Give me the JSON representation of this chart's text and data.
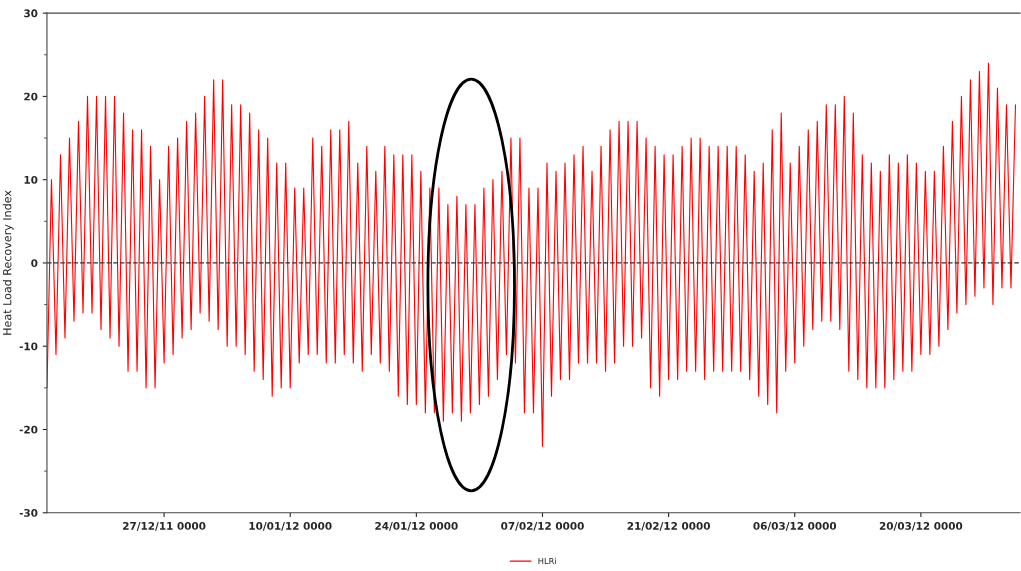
{
  "chart_data": {
    "type": "line",
    "ylabel": "Heat Load Recovery Index",
    "xlim": [
      "2011-12-14",
      "2012-03-31"
    ],
    "xticks": [
      {
        "value": "2011-12-27",
        "label": "27/12/11 0000"
      },
      {
        "value": "2012-01-10",
        "label": "10/01/12 0000"
      },
      {
        "value": "2012-01-24",
        "label": "24/01/12 0000"
      },
      {
        "value": "2012-02-07",
        "label": "07/02/12 0000"
      },
      {
        "value": "2012-02-21",
        "label": "21/02/12 0000"
      },
      {
        "value": "2012-03-06",
        "label": "06/03/12 0000"
      },
      {
        "value": "2012-03-20",
        "label": "20/03/12 0000"
      }
    ],
    "ylim": [
      -30,
      30
    ],
    "yticks": [
      -30,
      -20,
      -10,
      0,
      10,
      20,
      30
    ],
    "grid": false,
    "legend": "bottom",
    "marker": "none",
    "line_style": "solid",
    "ref_lines": [
      {
        "axis": "y",
        "value": 0,
        "color": "#333333",
        "line_style": "dashed"
      }
    ],
    "series": [
      {
        "name": "HLRi",
        "color": "#ff0000",
        "x": [
          "2011-12-14T00:00",
          "2011-12-14T12:00",
          "2011-12-15T00:00",
          "2011-12-15T12:00",
          "2011-12-16T00:00",
          "2011-12-16T12:00",
          "2011-12-17T00:00",
          "2011-12-17T12:00",
          "2011-12-18T00:00",
          "2011-12-18T12:00",
          "2011-12-19T00:00",
          "2011-12-19T12:00",
          "2011-12-20T00:00",
          "2011-12-20T12:00",
          "2011-12-21T00:00",
          "2011-12-21T12:00",
          "2011-12-22T00:00",
          "2011-12-22T12:00",
          "2011-12-23T00:00",
          "2011-12-23T12:00",
          "2011-12-24T00:00",
          "2011-12-24T12:00",
          "2011-12-25T00:00",
          "2011-12-25T12:00",
          "2011-12-26T00:00",
          "2011-12-26T12:00",
          "2011-12-27T00:00",
          "2011-12-27T12:00",
          "2011-12-28T00:00",
          "2011-12-28T12:00",
          "2011-12-29T00:00",
          "2011-12-29T12:00",
          "2011-12-30T00:00",
          "2011-12-30T12:00",
          "2011-12-31T00:00",
          "2011-12-31T12:00",
          "2012-01-01T00:00",
          "2012-01-01T12:00",
          "2012-01-02T00:00",
          "2012-01-02T12:00",
          "2012-01-03T00:00",
          "2012-01-03T12:00",
          "2012-01-04T00:00",
          "2012-01-04T12:00",
          "2012-01-05T00:00",
          "2012-01-05T12:00",
          "2012-01-06T00:00",
          "2012-01-06T12:00",
          "2012-01-07T00:00",
          "2012-01-07T12:00",
          "2012-01-08T00:00",
          "2012-01-08T12:00",
          "2012-01-09T00:00",
          "2012-01-09T12:00",
          "2012-01-10T00:00",
          "2012-01-10T12:00",
          "2012-01-11T00:00",
          "2012-01-11T12:00",
          "2012-01-12T00:00",
          "2012-01-12T12:00",
          "2012-01-13T00:00",
          "2012-01-13T12:00",
          "2012-01-14T00:00",
          "2012-01-14T12:00",
          "2012-01-15T00:00",
          "2012-01-15T12:00",
          "2012-01-16T00:00",
          "2012-01-16T12:00",
          "2012-01-17T00:00",
          "2012-01-17T12:00",
          "2012-01-18T00:00",
          "2012-01-18T12:00",
          "2012-01-19T00:00",
          "2012-01-19T12:00",
          "2012-01-20T00:00",
          "2012-01-20T12:00",
          "2012-01-21T00:00",
          "2012-01-21T12:00",
          "2012-01-22T00:00",
          "2012-01-22T12:00",
          "2012-01-23T00:00",
          "2012-01-23T12:00",
          "2012-01-24T00:00",
          "2012-01-24T12:00",
          "2012-01-25T00:00",
          "2012-01-25T12:00",
          "2012-01-26T00:00",
          "2012-01-26T12:00",
          "2012-01-27T00:00",
          "2012-01-27T12:00",
          "2012-01-28T00:00",
          "2012-01-28T12:00",
          "2012-01-29T00:00",
          "2012-01-29T12:00",
          "2012-01-30T00:00",
          "2012-01-30T12:00",
          "2012-01-31T00:00",
          "2012-01-31T12:00",
          "2012-02-01T00:00",
          "2012-02-01T12:00",
          "2012-02-02T00:00",
          "2012-02-02T12:00",
          "2012-02-03T00:00",
          "2012-02-03T12:00",
          "2012-02-04T00:00",
          "2012-02-04T12:00",
          "2012-02-05T00:00",
          "2012-02-05T12:00",
          "2012-02-06T00:00",
          "2012-02-06T12:00",
          "2012-02-07T00:00",
          "2012-02-07T12:00",
          "2012-02-08T00:00",
          "2012-02-08T12:00",
          "2012-02-09T00:00",
          "2012-02-09T12:00",
          "2012-02-10T00:00",
          "2012-02-10T12:00",
          "2012-02-11T00:00",
          "2012-02-11T12:00",
          "2012-02-12T00:00",
          "2012-02-12T12:00",
          "2012-02-13T00:00",
          "2012-02-13T12:00",
          "2012-02-14T00:00",
          "2012-02-14T12:00",
          "2012-02-15T00:00",
          "2012-02-15T12:00",
          "2012-02-16T00:00",
          "2012-02-16T12:00",
          "2012-02-17T00:00",
          "2012-02-17T12:00",
          "2012-02-18T00:00",
          "2012-02-18T12:00",
          "2012-02-19T00:00",
          "2012-02-19T12:00",
          "2012-02-20T00:00",
          "2012-02-20T12:00",
          "2012-02-21T00:00",
          "2012-02-21T12:00",
          "2012-02-22T00:00",
          "2012-02-22T12:00",
          "2012-02-23T00:00",
          "2012-02-23T12:00",
          "2012-02-24T00:00",
          "2012-02-24T12:00",
          "2012-02-25T00:00",
          "2012-02-25T12:00",
          "2012-02-26T00:00",
          "2012-02-26T12:00",
          "2012-02-27T00:00",
          "2012-02-27T12:00",
          "2012-02-28T00:00",
          "2012-02-28T12:00",
          "2012-02-29T00:00",
          "2012-02-29T12:00",
          "2012-03-01T00:00",
          "2012-03-01T12:00",
          "2012-03-02T00:00",
          "2012-03-02T12:00",
          "2012-03-03T00:00",
          "2012-03-03T12:00",
          "2012-03-04T00:00",
          "2012-03-04T12:00",
          "2012-03-05T00:00",
          "2012-03-05T12:00",
          "2012-03-06T00:00",
          "2012-03-06T12:00",
          "2012-03-07T00:00",
          "2012-03-07T12:00",
          "2012-03-08T00:00",
          "2012-03-08T12:00",
          "2012-03-09T00:00",
          "2012-03-09T12:00",
          "2012-03-10T00:00",
          "2012-03-10T12:00",
          "2012-03-11T00:00",
          "2012-03-11T12:00",
          "2012-03-12T00:00",
          "2012-03-12T12:00",
          "2012-03-13T00:00",
          "2012-03-13T12:00",
          "2012-03-14T00:00",
          "2012-03-14T12:00",
          "2012-03-15T00:00",
          "2012-03-15T12:00",
          "2012-03-16T00:00",
          "2012-03-16T12:00",
          "2012-03-17T00:00",
          "2012-03-17T12:00",
          "2012-03-18T00:00",
          "2012-03-18T12:00",
          "2012-03-19T00:00",
          "2012-03-19T12:00",
          "2012-03-20T00:00",
          "2012-03-20T12:00",
          "2012-03-21T00:00",
          "2012-03-21T12:00",
          "2012-03-22T00:00",
          "2012-03-22T12:00",
          "2012-03-23T00:00",
          "2012-03-23T12:00",
          "2012-03-24T00:00",
          "2012-03-24T12:00",
          "2012-03-25T00:00",
          "2012-03-25T12:00",
          "2012-03-26T00:00",
          "2012-03-26T12:00",
          "2012-03-27T00:00",
          "2012-03-27T12:00",
          "2012-03-28T00:00",
          "2012-03-28T12:00",
          "2012-03-29T00:00",
          "2012-03-29T12:00",
          "2012-03-30T00:00",
          "2012-03-30T12:00"
        ],
        "values": [
          -15,
          10,
          -11,
          13,
          -9,
          15,
          -7,
          17,
          -6,
          20,
          -6,
          20,
          -8,
          20,
          -9,
          20,
          -10,
          18,
          -13,
          16,
          -13,
          16,
          -15,
          14,
          -15,
          10,
          -12,
          14,
          -11,
          15,
          -9,
          17,
          -8,
          18,
          -6,
          20,
          -7,
          22,
          -8,
          22,
          -10,
          19,
          -10,
          19,
          -11,
          18,
          -13,
          16,
          -14,
          15,
          -16,
          12,
          -15,
          12,
          -15,
          9,
          -12,
          9,
          -11,
          15,
          -11,
          14,
          -12,
          16,
          -12,
          16,
          -11,
          17,
          -12,
          12,
          -13,
          14,
          -11,
          11,
          -12,
          14,
          -13,
          13,
          -16,
          13,
          -17,
          13,
          -17,
          11,
          -18,
          9,
          -18,
          9,
          -19,
          7,
          -18,
          8,
          -19,
          7,
          -18,
          7,
          -17,
          9,
          -16,
          10,
          -14,
          11,
          -11,
          15,
          -12,
          15,
          -18,
          9,
          -18,
          9,
          -22,
          12,
          -16,
          11,
          -14,
          12,
          -14,
          13,
          -12,
          14,
          -12,
          11,
          -12,
          14,
          -13,
          16,
          -12,
          17,
          -10,
          17,
          -10,
          17,
          -9,
          15,
          -15,
          14,
          -16,
          13,
          -14,
          13,
          -14,
          14,
          -13,
          15,
          -13,
          15,
          -14,
          14,
          -13,
          14,
          -13,
          14,
          -13,
          14,
          -13,
          13,
          -14,
          11,
          -16,
          12,
          -17,
          16,
          -18,
          18,
          -13,
          12,
          -12,
          14,
          -10,
          16,
          -8,
          17,
          -7,
          19,
          -7,
          19,
          -8,
          20,
          -13,
          18,
          -14,
          13,
          -15,
          12,
          -15,
          11,
          -15,
          13,
          -14,
          12,
          -13,
          13,
          -13,
          12,
          -11,
          11,
          -11,
          11,
          -10,
          14,
          -8,
          17,
          -6,
          20,
          -5,
          22,
          -4,
          23,
          -3,
          24,
          -5,
          21,
          -3,
          19,
          -3,
          19
        ]
      }
    ]
  }
}
